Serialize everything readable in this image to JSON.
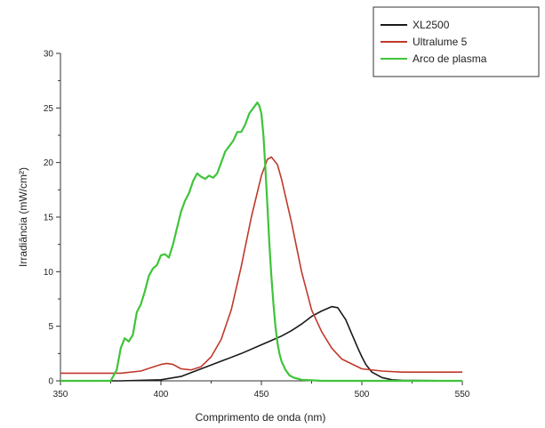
{
  "chart_data": {
    "type": "line",
    "title": "",
    "xlabel": "Comprimento de onda (nm)",
    "ylabel": "Irradiância (mW/cm²)",
    "xlim": [
      350,
      550
    ],
    "ylim": [
      0,
      30
    ],
    "x_ticks": [
      350,
      400,
      450,
      500,
      550
    ],
    "y_ticks": [
      0,
      5,
      10,
      15,
      20,
      25,
      30
    ],
    "legend_position": "top-right",
    "grid": false,
    "series": [
      {
        "name": "XL2500",
        "color": "#1a1a1a",
        "x": [
          350,
          380,
          400,
          410,
          420,
          430,
          440,
          450,
          455,
          460,
          465,
          470,
          475,
          480,
          485,
          488,
          492,
          495,
          498,
          500,
          502,
          505,
          510,
          515,
          520,
          550
        ],
        "y": [
          0,
          0,
          0.1,
          0.4,
          1.1,
          1.8,
          2.5,
          3.3,
          3.7,
          4.1,
          4.6,
          5.2,
          5.9,
          6.4,
          6.8,
          6.7,
          5.6,
          4.3,
          3.0,
          2.2,
          1.5,
          0.8,
          0.3,
          0.1,
          0.05,
          0
        ]
      },
      {
        "name": "Ultralume 5",
        "color": "#c0392b",
        "x": [
          350,
          380,
          390,
          395,
          400,
          403,
          406,
          410,
          415,
          420,
          425,
          430,
          435,
          440,
          445,
          450,
          453,
          455,
          458,
          460,
          465,
          470,
          475,
          480,
          485,
          490,
          500,
          510,
          520,
          550
        ],
        "y": [
          0.7,
          0.7,
          0.9,
          1.2,
          1.5,
          1.6,
          1.5,
          1.1,
          1.0,
          1.3,
          2.2,
          3.8,
          6.5,
          10.5,
          15.0,
          18.8,
          20.3,
          20.5,
          19.8,
          18.5,
          14.5,
          10.0,
          6.5,
          4.5,
          3.0,
          2.0,
          1.1,
          0.9,
          0.8,
          0.8
        ]
      },
      {
        "name": "Arco de plasma",
        "color": "#3fc43a",
        "x": [
          350,
          375,
          378,
          380,
          382,
          384,
          386,
          388,
          390,
          392,
          394,
          396,
          398,
          400,
          402,
          404,
          406,
          408,
          410,
          412,
          414,
          416,
          418,
          420,
          422,
          424,
          426,
          428,
          430,
          432,
          434,
          436,
          438,
          440,
          442,
          444,
          446,
          448,
          449,
          450,
          451,
          452,
          453,
          454,
          455,
          456,
          457,
          458,
          459,
          460,
          462,
          464,
          466,
          470,
          475,
          480,
          550
        ],
        "y": [
          0,
          0,
          1.0,
          3.0,
          3.9,
          3.6,
          4.2,
          6.3,
          7.0,
          8.2,
          9.6,
          10.3,
          10.6,
          11.5,
          11.6,
          11.3,
          12.5,
          14.0,
          15.5,
          16.5,
          17.2,
          18.3,
          19.0,
          18.7,
          18.5,
          18.8,
          18.6,
          19.0,
          20.0,
          21.0,
          21.5,
          22.0,
          22.8,
          22.8,
          23.5,
          24.5,
          25.0,
          25.5,
          25.2,
          24.5,
          22.5,
          19.5,
          16.0,
          12.5,
          9.5,
          7.0,
          5.0,
          3.5,
          2.5,
          1.8,
          1.0,
          0.5,
          0.3,
          0.1,
          0.05,
          0,
          0
        ]
      }
    ]
  }
}
